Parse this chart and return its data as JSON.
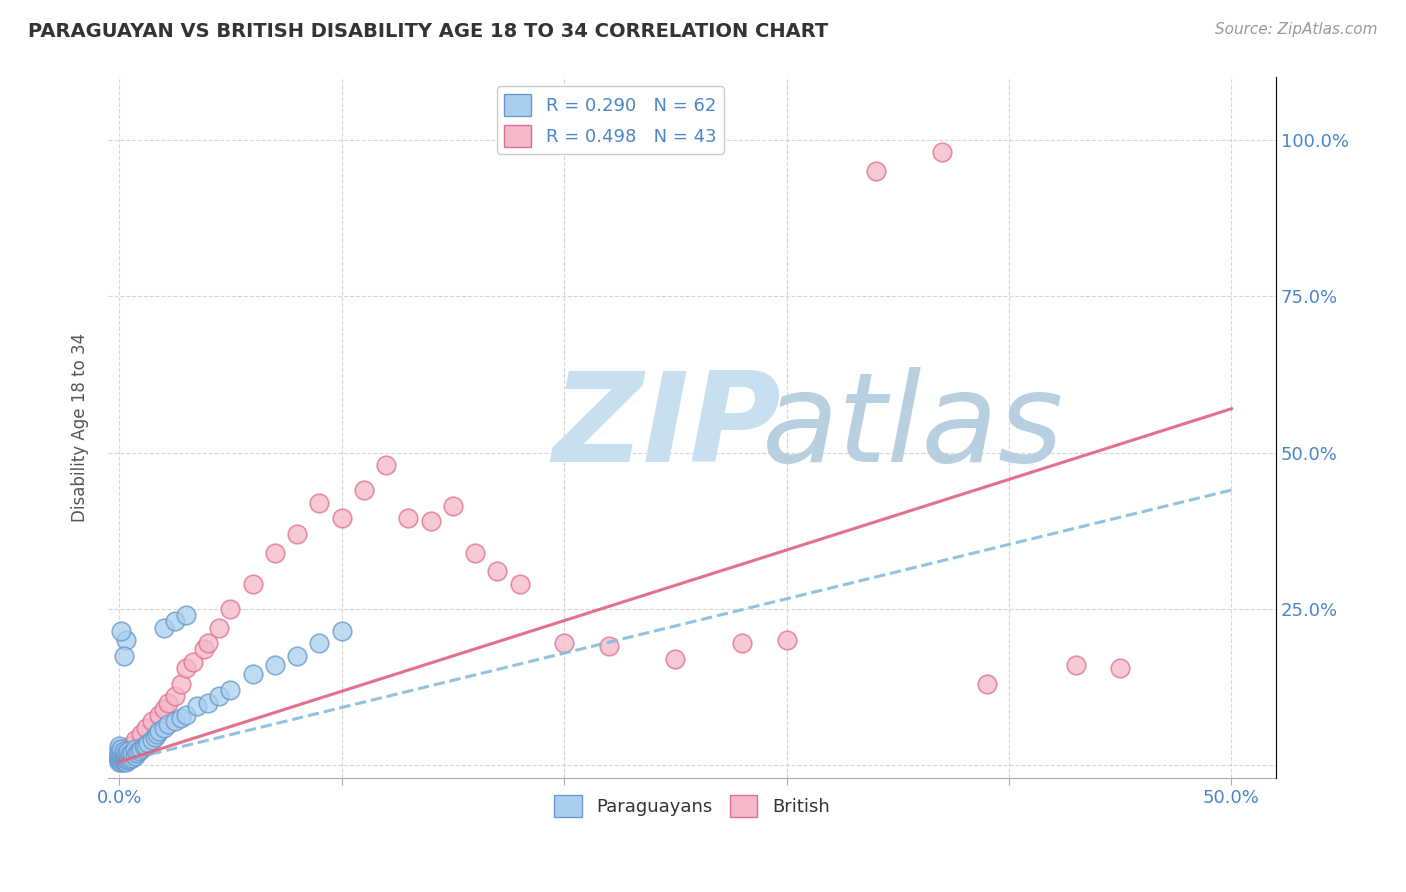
{
  "title": "PARAGUAYAN VS BRITISH DISABILITY AGE 18 TO 34 CORRELATION CHART",
  "source_text": "Source: ZipAtlas.com",
  "ylabel": "Disability Age 18 to 34",
  "x_ticks": [
    0.0,
    0.1,
    0.2,
    0.3,
    0.4,
    0.5
  ],
  "x_tick_labels": [
    "0.0%",
    "",
    "",
    "",
    "",
    "50.0%"
  ],
  "y_ticks": [
    0.0,
    0.25,
    0.5,
    0.75,
    1.0
  ],
  "y_tick_labels": [
    "",
    "25.0%",
    "50.0%",
    "75.0%",
    "100.0%"
  ],
  "xlim": [
    -0.005,
    0.52
  ],
  "ylim": [
    -0.02,
    1.1
  ],
  "paraguayans_R": 0.29,
  "paraguayans_N": 62,
  "british_R": 0.498,
  "british_N": 43,
  "paraguayan_color": "#aacfee",
  "paraguayan_edge_color": "#6699cc",
  "british_color": "#f5b8c8",
  "british_edge_color": "#e07090",
  "paraguayan_line_color": "#88bbdd",
  "british_line_color": "#e06080",
  "watermark_zip": "ZIP",
  "watermark_atlas": "atlas",
  "watermark_color_zip": "#c8dff0",
  "watermark_color_atlas": "#b8cfe0",
  "background_color": "#ffffff",
  "grid_color": "#cccccc",
  "para_trend_x0": 0.0,
  "para_trend_y0": 0.005,
  "para_trend_x1": 0.5,
  "para_trend_y1": 0.44,
  "brit_trend_x0": 0.0,
  "brit_trend_y0": 0.005,
  "brit_trend_x1": 0.5,
  "brit_trend_y1": 0.57,
  "para_x": [
    0.0,
    0.0,
    0.0,
    0.0,
    0.0,
    0.0,
    0.0,
    0.0,
    0.0,
    0.001,
    0.001,
    0.001,
    0.001,
    0.001,
    0.002,
    0.002,
    0.002,
    0.002,
    0.002,
    0.003,
    0.003,
    0.003,
    0.003,
    0.004,
    0.004,
    0.004,
    0.005,
    0.005,
    0.006,
    0.006,
    0.007,
    0.007,
    0.008,
    0.009,
    0.01,
    0.011,
    0.012,
    0.013,
    0.015,
    0.016,
    0.017,
    0.018,
    0.02,
    0.022,
    0.025,
    0.028,
    0.03,
    0.035,
    0.04,
    0.045,
    0.05,
    0.06,
    0.07,
    0.08,
    0.09,
    0.1,
    0.02,
    0.025,
    0.03,
    0.003,
    0.002,
    0.001
  ],
  "para_y": [
    0.005,
    0.01,
    0.015,
    0.02,
    0.025,
    0.03,
    0.008,
    0.012,
    0.018,
    0.005,
    0.01,
    0.015,
    0.02,
    0.025,
    0.005,
    0.008,
    0.012,
    0.018,
    0.022,
    0.005,
    0.01,
    0.015,
    0.02,
    0.008,
    0.015,
    0.022,
    0.01,
    0.018,
    0.012,
    0.02,
    0.015,
    0.025,
    0.02,
    0.022,
    0.025,
    0.03,
    0.03,
    0.035,
    0.04,
    0.045,
    0.05,
    0.055,
    0.06,
    0.065,
    0.07,
    0.075,
    0.08,
    0.095,
    0.1,
    0.11,
    0.12,
    0.145,
    0.16,
    0.175,
    0.195,
    0.215,
    0.22,
    0.23,
    0.24,
    0.2,
    0.175,
    0.215
  ],
  "brit_x": [
    0.0,
    0.001,
    0.002,
    0.003,
    0.005,
    0.007,
    0.01,
    0.012,
    0.015,
    0.018,
    0.02,
    0.022,
    0.025,
    0.028,
    0.03,
    0.033,
    0.038,
    0.04,
    0.045,
    0.05,
    0.06,
    0.07,
    0.08,
    0.09,
    0.1,
    0.11,
    0.12,
    0.13,
    0.14,
    0.15,
    0.16,
    0.17,
    0.18,
    0.2,
    0.22,
    0.25,
    0.28,
    0.3,
    0.34,
    0.37,
    0.39,
    0.43,
    0.45
  ],
  "brit_y": [
    0.01,
    0.015,
    0.02,
    0.025,
    0.03,
    0.04,
    0.05,
    0.06,
    0.07,
    0.08,
    0.09,
    0.1,
    0.11,
    0.13,
    0.155,
    0.165,
    0.185,
    0.195,
    0.22,
    0.25,
    0.29,
    0.34,
    0.37,
    0.42,
    0.395,
    0.44,
    0.48,
    0.395,
    0.39,
    0.415,
    0.34,
    0.31,
    0.29,
    0.195,
    0.19,
    0.17,
    0.195,
    0.2,
    0.95,
    0.98,
    0.13,
    0.16,
    0.155
  ]
}
